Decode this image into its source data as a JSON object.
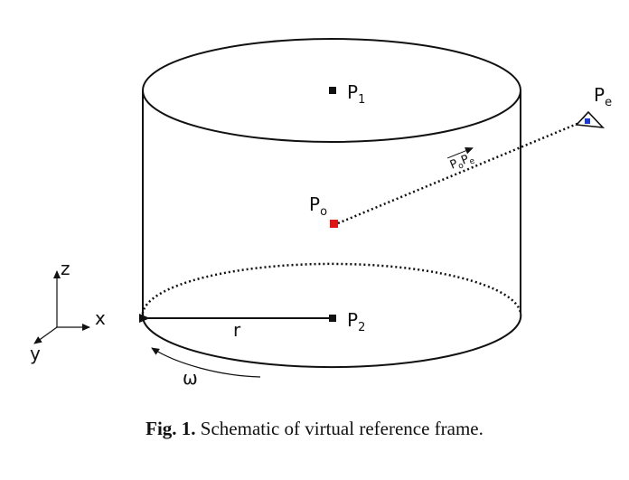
{
  "diagram": {
    "points": {
      "p1": {
        "label": "P",
        "sub": "1"
      },
      "p2": {
        "label": "P",
        "sub": "2"
      },
      "po": {
        "label": "P",
        "sub": "o"
      },
      "pe": {
        "label": "P",
        "sub": "e"
      }
    },
    "vector_label": {
      "a": "P",
      "a_sub": "o",
      "b": "P",
      "b_sub": "e"
    },
    "radius_label": "r",
    "omega_label": "ω",
    "axes": {
      "x": "x",
      "y": "y",
      "z": "z"
    },
    "colors": {
      "stroke": "#111111",
      "po_marker": "#e01515",
      "camera_dot": "#1a3ad8"
    },
    "icons": {
      "camera": "camera-frustum-icon"
    }
  },
  "caption": {
    "fig_label": "Fig. 1.",
    "text": "Schematic of virtual reference frame."
  }
}
